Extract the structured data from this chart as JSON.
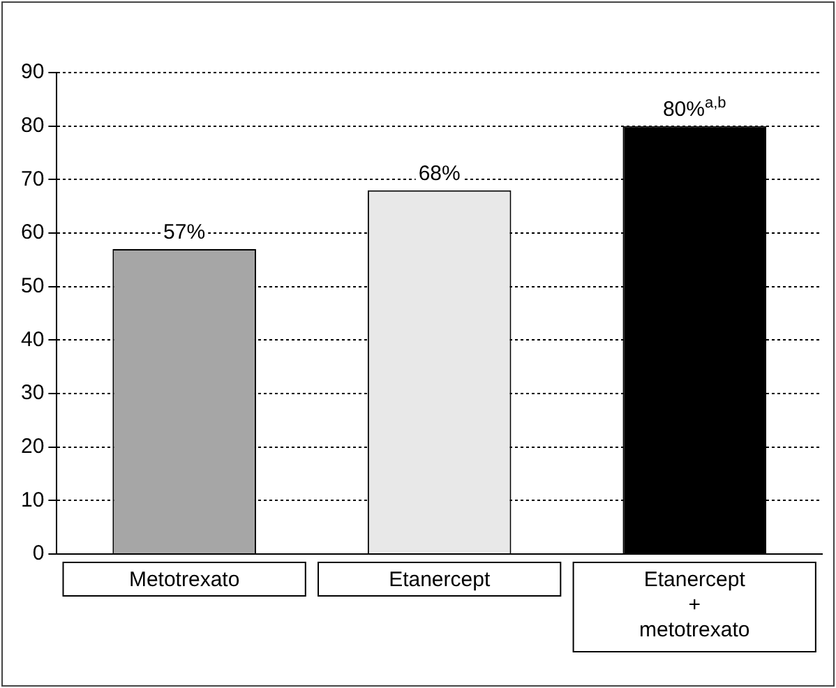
{
  "chart_data": {
    "type": "bar",
    "categories": [
      "Metotrexato",
      "Etanercept",
      "Etanercept + metotrexato"
    ],
    "values": [
      57,
      68,
      80
    ],
    "colors": [
      "#a6a6a6",
      "#e8e8e8",
      "#000000"
    ],
    "value_labels": [
      "57%",
      "68%",
      "80%$^{a,b}$"
    ],
    "ylim": [
      0,
      90
    ],
    "yticks": [
      0,
      10,
      20,
      30,
      40,
      50,
      60,
      70,
      80,
      90
    ],
    "grid": "y",
    "legend": false
  }
}
